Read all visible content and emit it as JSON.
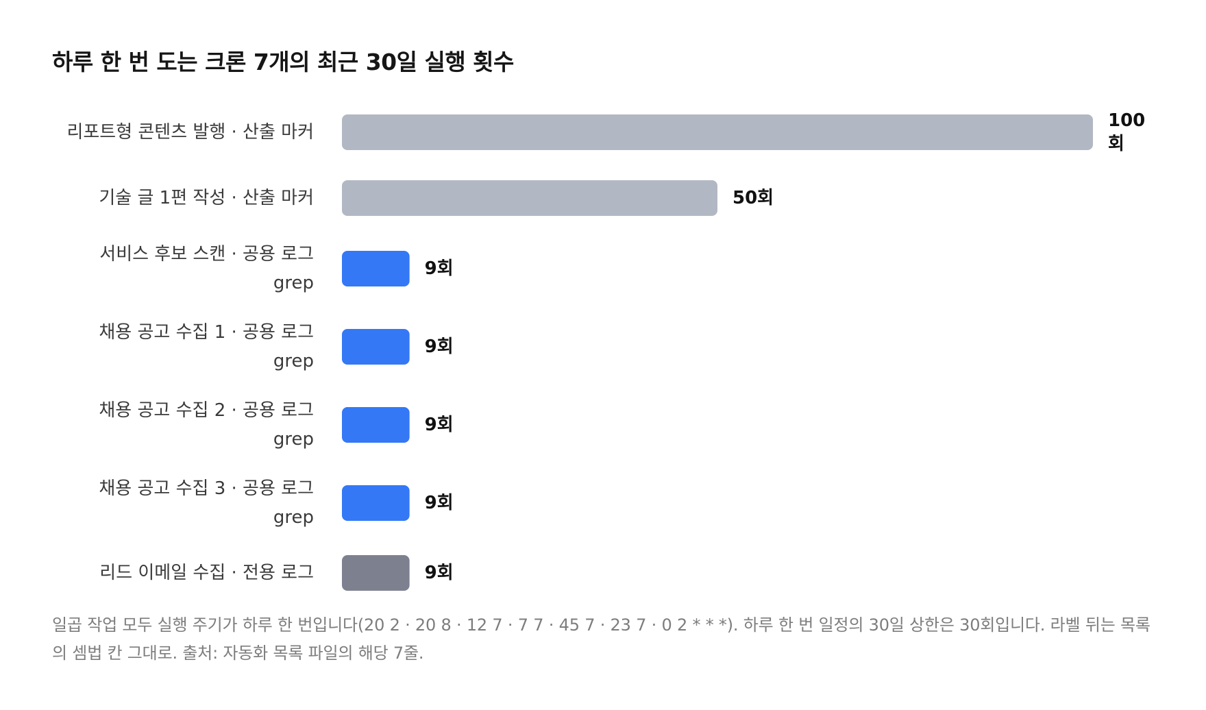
{
  "chart_data": {
    "type": "bar",
    "orientation": "horizontal",
    "title": "하루 한 번 도는 크론 7개의 최근 30일 실행 횟수",
    "categories": [
      [
        "리포트형 콘텐츠 발행 · 산출 마커"
      ],
      [
        "기술 글 1편 작성 · 산출 마커"
      ],
      [
        "서비스 후보 스캔 · 공용 로그",
        "grep"
      ],
      [
        "채용 공고 수집 1 · 공용 로그",
        "grep"
      ],
      [
        "채용 공고 수집 2 · 공용 로그",
        "grep"
      ],
      [
        "채용 공고 수집 3 · 공용 로그",
        "grep"
      ],
      [
        "리드 이메일 수집 · 전용 로그"
      ]
    ],
    "values": [
      100,
      50,
      9,
      9,
      9,
      9,
      9
    ],
    "value_labels": [
      [
        "100",
        "회"
      ],
      [
        "50회"
      ],
      [
        "9회"
      ],
      [
        "9회"
      ],
      [
        "9회"
      ],
      [
        "9회"
      ],
      [
        "9회"
      ]
    ],
    "bar_colors": [
      "#b1b8c3",
      "#b1b8c3",
      "#3478f6",
      "#3478f6",
      "#3478f6",
      "#3478f6",
      "#7d808f"
    ],
    "xlim": [
      0,
      100
    ],
    "grid": false,
    "legend": "none",
    "note": "일곱 작업 모두 실행 주기가 하루 한 번입니다(20 2 · 20 8 · 12 7 · 7 7 · 45 7 · 23 7 · 0 2 * * *). 하루 한 번 일정의 30일 상한은 30회입니다. 라벨 뒤는 목록의 셈법 칸 그대로. 출처: 자동화 목록 파일의 해당 7줄."
  }
}
